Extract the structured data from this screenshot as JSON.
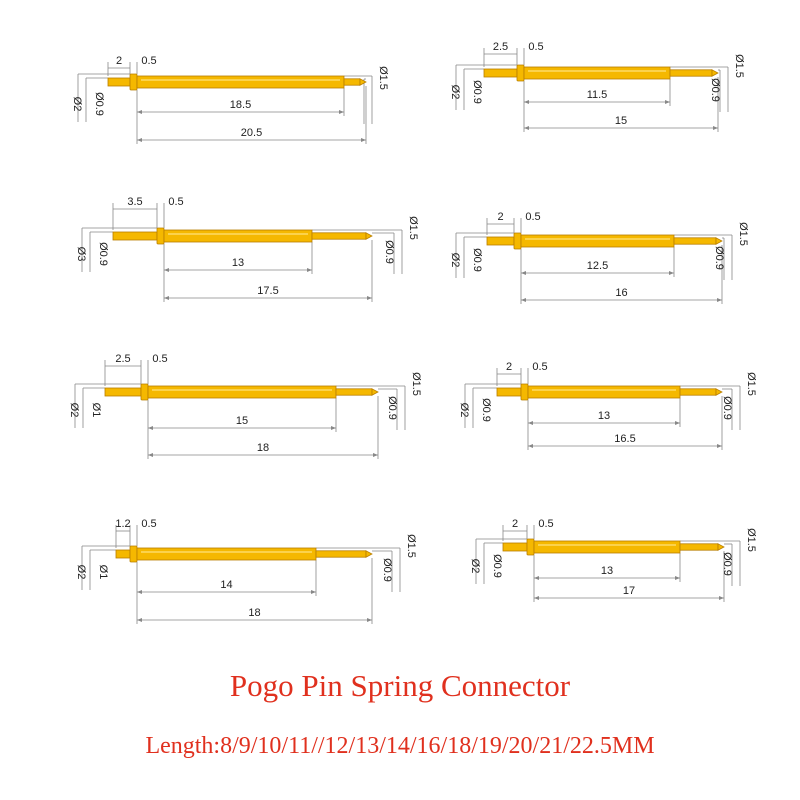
{
  "caption": {
    "title": "Pogo Pin Spring Connector",
    "lengths": "Length:8/9/10/11//12/13/14/16/18/19/20/21/22.5MM"
  },
  "colors": {
    "pin_body": "#f5b800",
    "pin_edge": "#b97e00",
    "dimension_line": "#888888",
    "dimension_text": "#222222",
    "caption_text": "#e0301e"
  },
  "pins": [
    {
      "id": "pin-1",
      "tail": "2",
      "collar": "0.5",
      "barrel": "18.5",
      "total": "20.5",
      "d_tail": "Ø2",
      "d_plunger": "Ø0.9",
      "d_barrel": "Ø1.5",
      "d_tip": ""
    },
    {
      "id": "pin-2",
      "tail": "2.5",
      "collar": "0.5",
      "barrel": "11.5",
      "total": "15",
      "d_tail": "Ø2",
      "d_plunger": "Ø0.9",
      "d_barrel": "Ø1.5",
      "d_tip": "Ø0.9"
    },
    {
      "id": "pin-3",
      "tail": "3.5",
      "collar": "0.5",
      "barrel": "13",
      "total": "17.5",
      "d_tail": "Ø3",
      "d_plunger": "Ø0.9",
      "d_barrel": "Ø1.5",
      "d_tip": "Ø0.9"
    },
    {
      "id": "pin-4",
      "tail": "2",
      "collar": "0.5",
      "barrel": "12.5",
      "total": "16",
      "d_tail": "Ø2",
      "d_plunger": "Ø0.9",
      "d_barrel": "Ø1.5",
      "d_tip": "Ø0.9"
    },
    {
      "id": "pin-5",
      "tail": "2.5",
      "collar": "0.5",
      "barrel": "15",
      "total": "18",
      "d_tail": "Ø2",
      "d_plunger": "Ø1",
      "d_barrel": "Ø1.5",
      "d_tip": "Ø0.9"
    },
    {
      "id": "pin-6",
      "tail": "2",
      "collar": "0.5",
      "barrel": "13",
      "total": "16.5",
      "d_tail": "Ø2",
      "d_plunger": "Ø0.9",
      "d_barrel": "Ø1.5",
      "d_tip": "Ø0.9"
    },
    {
      "id": "pin-7",
      "tail": "1.2",
      "collar": "0.5",
      "barrel": "14",
      "total": "18",
      "d_tail": "Ø2",
      "d_plunger": "Ø1",
      "d_barrel": "Ø1.5",
      "d_tip": "Ø0.9"
    },
    {
      "id": "pin-8",
      "tail": "2",
      "collar": "0.5",
      "barrel": "13",
      "total": "17",
      "d_tail": "Ø2",
      "d_plunger": "Ø0.9",
      "d_barrel": "Ø1.5",
      "d_tip": "Ø0.9"
    }
  ]
}
